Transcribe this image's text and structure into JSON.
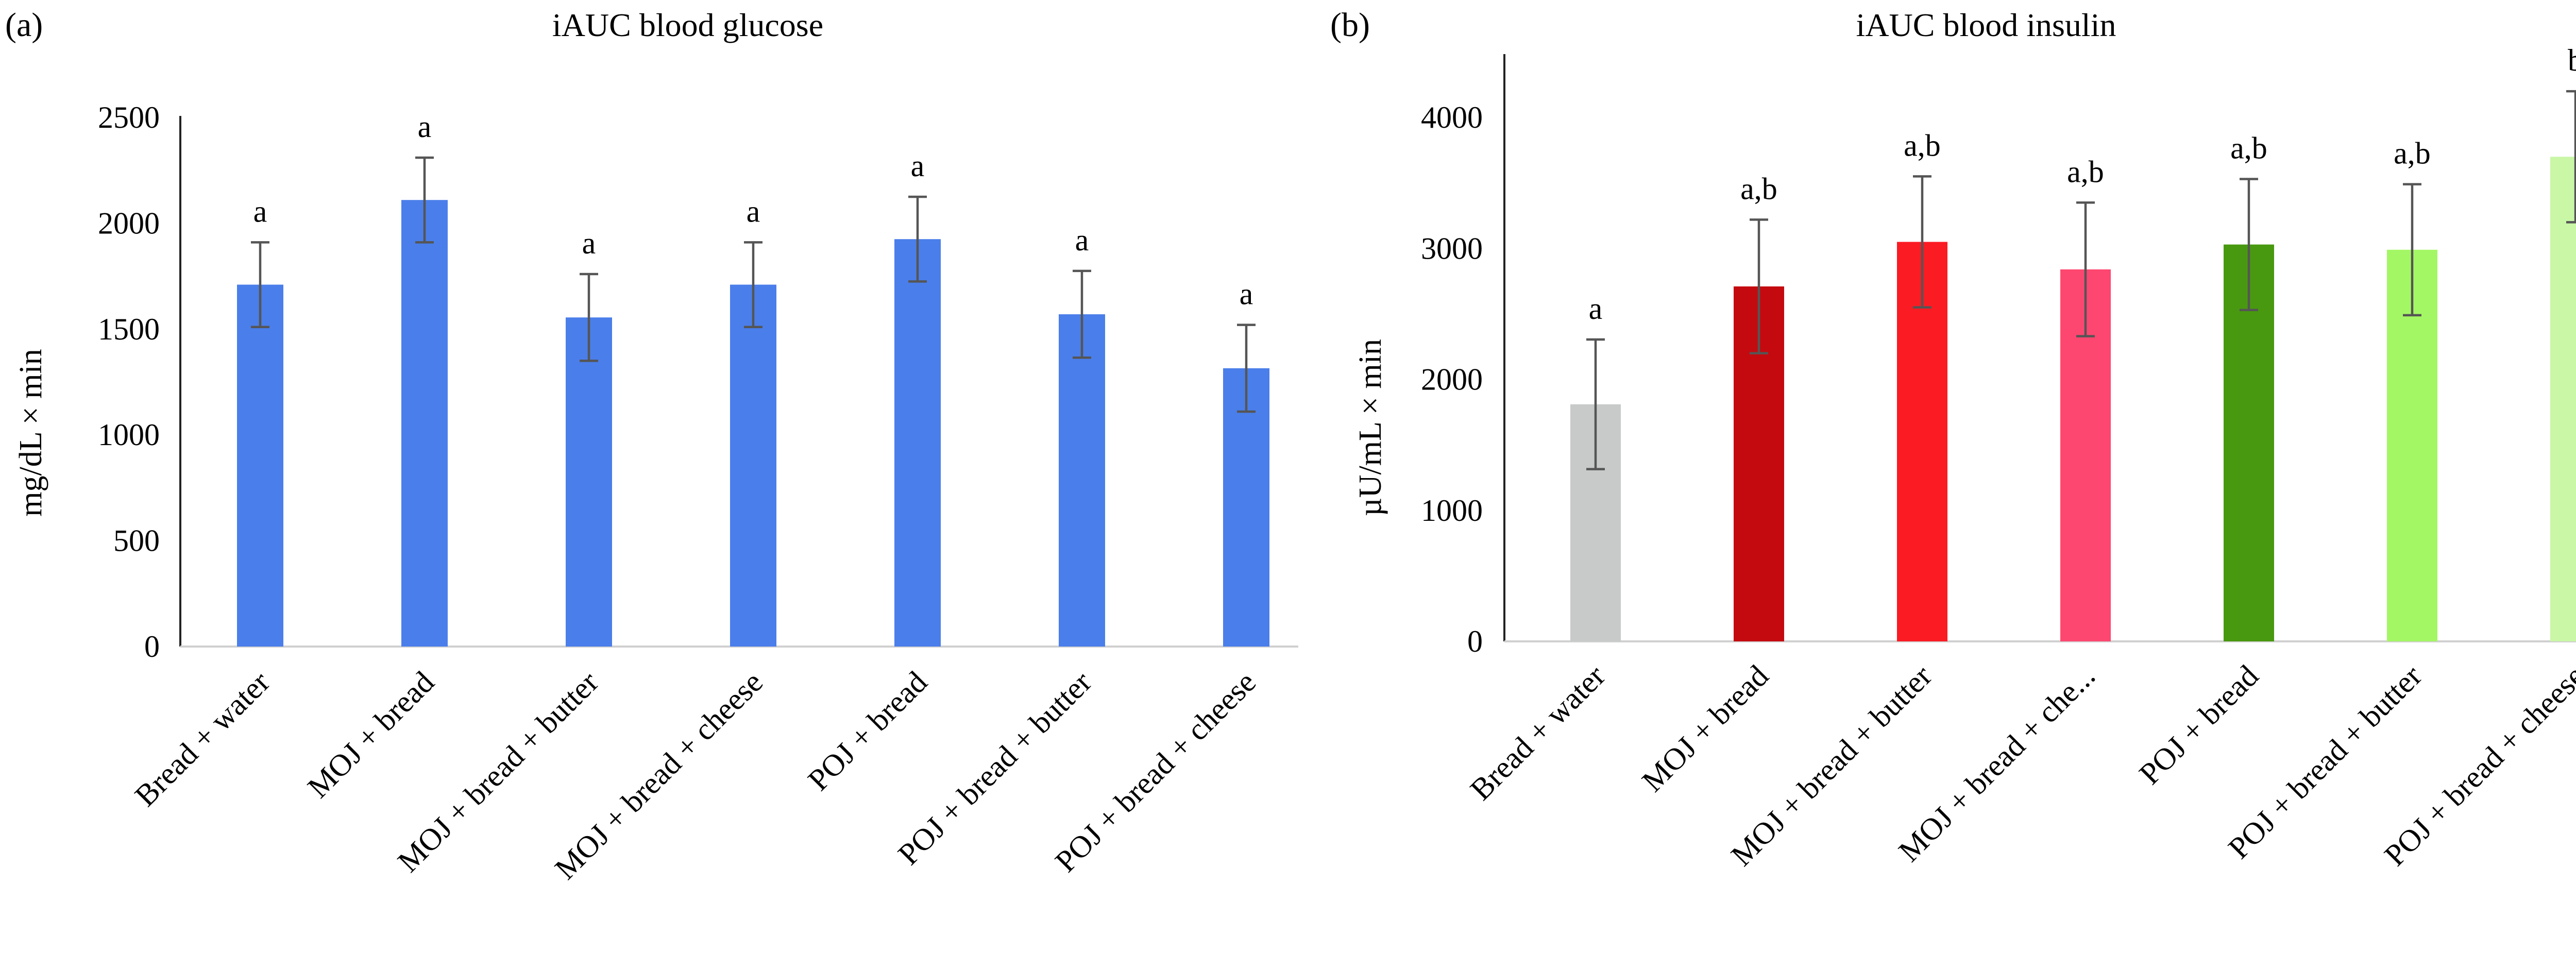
{
  "chart_data": [
    {
      "panel": "(a)",
      "type": "bar",
      "title": "iAUC blood glucose",
      "ylabel": "mg/dL × min",
      "xlabel": "",
      "ylim": [
        0,
        2500
      ],
      "yticks": [
        0,
        500,
        1000,
        1500,
        2000,
        2500
      ],
      "grid": false,
      "legend": "none",
      "categories": [
        "Bread + water",
        "MOJ + bread",
        "MOJ + bread + butter",
        "MOJ + bread + cheese",
        "POJ + bread",
        "POJ + bread + butter",
        "POJ + bread + cheese"
      ],
      "values": [
        1710,
        2110,
        1555,
        1710,
        1925,
        1570,
        1315
      ],
      "errors": [
        200,
        200,
        205,
        200,
        200,
        205,
        205
      ],
      "labels": [
        "a",
        "a",
        "a",
        "a",
        "a",
        "a",
        "a"
      ],
      "colors": [
        "#4a7eea",
        "#4a7eea",
        "#4a7eea",
        "#4a7eea",
        "#4a7eea",
        "#4a7eea",
        "#4a7eea"
      ]
    },
    {
      "panel": "(b)",
      "type": "bar",
      "title": "iAUC blood insulin",
      "ylabel": "µU/mL × min",
      "xlabel": "",
      "ylim": [
        0,
        4400
      ],
      "yticks": [
        0,
        1000,
        2000,
        3000,
        4000
      ],
      "grid": false,
      "legend": "none",
      "categories": [
        "Bread + water",
        "MOJ + bread",
        "MOJ + bread + butter",
        "MOJ + bread + che...",
        "POJ + bread",
        "POJ + bread + butter",
        "POJ + bread + cheese"
      ],
      "values": [
        1810,
        2710,
        3050,
        2840,
        3030,
        2990,
        3700
      ],
      "errors": [
        495,
        510,
        500,
        510,
        500,
        500,
        500
      ],
      "labels": [
        "a",
        "a,b",
        "a,b",
        "a,b",
        "a,b",
        "a,b",
        "b"
      ],
      "colors": [
        "#c7cac8",
        "#c40a0f",
        "#fb1b23",
        "#fd4770",
        "#48990f",
        "#a4f764",
        "#c9f7a6"
      ]
    }
  ]
}
